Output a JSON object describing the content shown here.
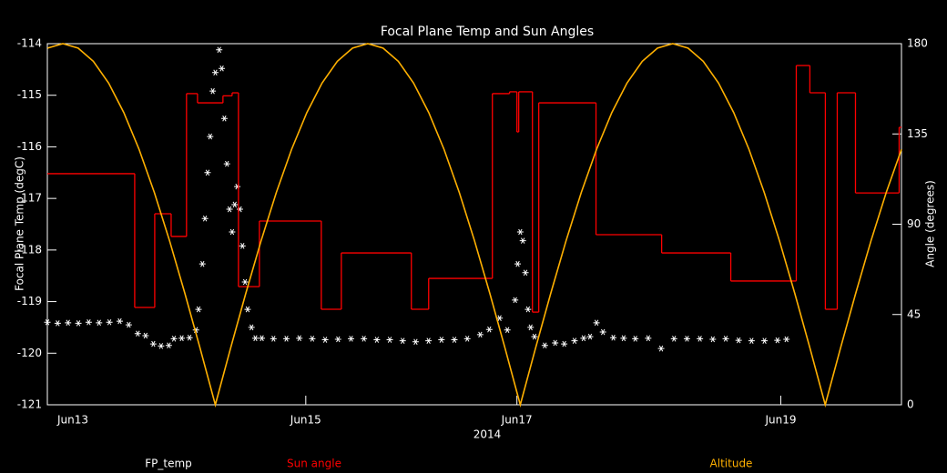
{
  "chart_data": {
    "type": "line",
    "title": "Focal Plane Temp and Sun Angles",
    "xlabel": "2014",
    "ylabel": "Focal Plane Temp (degC)",
    "y2label": "Angle (degrees)",
    "xlim": [
      0,
      6.61
    ],
    "xticks": [
      {
        "value": 0,
        "label": "Jun13"
      },
      {
        "value": 2.0,
        "label": "Jun15"
      },
      {
        "value": 3.634,
        "label": "Jun17"
      },
      {
        "value": 5.676,
        "label": "Jun19"
      }
    ],
    "ylim": [
      -121,
      -114
    ],
    "yticks": [
      -121,
      -120,
      -119,
      -118,
      -117,
      -116,
      -115,
      -114
    ],
    "y2lim": [
      0,
      180
    ],
    "y2ticks": [
      0,
      45,
      90,
      135,
      180
    ],
    "background": "#000000",
    "series": [
      {
        "name": "FP_temp",
        "color": "#ffffff",
        "style": "asterisk",
        "x": [
          0.0,
          0.08,
          0.16,
          0.24,
          0.32,
          0.4,
          0.48,
          0.56,
          0.63,
          0.7,
          0.76,
          0.82,
          0.88,
          0.94,
          0.98,
          1.04,
          1.1,
          1.15,
          1.17,
          1.2,
          1.22,
          1.24,
          1.26,
          1.28,
          1.3,
          1.33,
          1.35,
          1.37,
          1.39,
          1.41,
          1.43,
          1.45,
          1.47,
          1.49,
          1.51,
          1.53,
          1.55,
          1.58,
          1.61,
          1.66,
          1.75,
          1.85,
          1.95,
          2.05,
          2.15,
          2.25,
          2.35,
          2.45,
          2.55,
          2.65,
          2.75,
          2.85,
          2.95,
          3.05,
          3.15,
          3.25,
          3.35,
          3.42,
          3.5,
          3.56,
          3.62,
          3.64,
          3.66,
          3.68,
          3.7,
          3.72,
          3.74,
          3.77,
          3.85,
          3.93,
          4.0,
          4.08,
          4.15,
          4.2,
          4.25,
          4.3,
          4.38,
          4.46,
          4.55,
          4.65,
          4.75,
          4.85,
          4.95,
          5.05,
          5.15,
          5.25,
          5.35,
          5.45,
          5.55,
          5.65,
          5.72
        ],
        "values": [
          -119.4,
          -119.42,
          -119.41,
          -119.42,
          -119.4,
          -119.41,
          -119.4,
          -119.38,
          -119.45,
          -119.62,
          -119.66,
          -119.82,
          -119.86,
          -119.85,
          -119.72,
          -119.71,
          -119.7,
          -119.55,
          -119.15,
          -118.27,
          -117.39,
          -116.5,
          -115.8,
          -114.92,
          -114.56,
          -114.12,
          -114.48,
          -115.45,
          -116.33,
          -117.21,
          -117.65,
          -117.12,
          -116.77,
          -117.21,
          -117.92,
          -118.62,
          -119.15,
          -119.5,
          -119.71,
          -119.71,
          -119.72,
          -119.72,
          -119.71,
          -119.72,
          -119.74,
          -119.73,
          -119.72,
          -119.72,
          -119.74,
          -119.74,
          -119.76,
          -119.78,
          -119.76,
          -119.74,
          -119.74,
          -119.72,
          -119.64,
          -119.54,
          -119.32,
          -119.55,
          -118.97,
          -118.27,
          -117.65,
          -117.82,
          -118.44,
          -119.15,
          -119.5,
          -119.68,
          -119.85,
          -119.8,
          -119.82,
          -119.76,
          -119.71,
          -119.68,
          -119.41,
          -119.59,
          -119.7,
          -119.71,
          -119.72,
          -119.71,
          -119.91,
          -119.72,
          -119.72,
          -119.72,
          -119.73,
          -119.72,
          -119.75,
          -119.76,
          -119.76,
          -119.75,
          -119.73
        ]
      },
      {
        "name": "Sun angle",
        "color": "#ff0000",
        "style": "steps",
        "axis": "y2",
        "x": [
          0,
          0.676,
          0.831,
          0.958,
          1.077,
          1.162,
          1.359,
          1.43,
          1.479,
          1.641,
          2.12,
          2.275,
          2.817,
          2.951,
          3.444,
          3.577,
          3.634,
          3.648,
          3.754,
          3.803,
          4.246,
          4.754,
          5.289,
          5.796,
          5.901,
          6.021,
          6.113,
          6.254,
          6.592
        ],
        "values": [
          115.2,
          48.5,
          95.2,
          83.9,
          155.1,
          150.5,
          154.0,
          155.5,
          58.9,
          91.6,
          47.6,
          75.7,
          47.6,
          63.0,
          155.1,
          156.0,
          136.0,
          156.0,
          46.2,
          150.5,
          84.8,
          75.7,
          61.7,
          169.1,
          155.5,
          47.6,
          155.5,
          105.6,
          138.3
        ]
      },
      {
        "name": "Altitude",
        "color": "#ffb000",
        "style": "line",
        "axis": "y2",
        "x": [
          0.002,
          0.12,
          0.238,
          0.356,
          0.474,
          0.592,
          0.71,
          0.828,
          0.946,
          1.064,
          1.182,
          1.3,
          1.418,
          1.536,
          1.654,
          1.772,
          1.89,
          2.008,
          2.126,
          2.244,
          2.362,
          2.48,
          2.598,
          2.716,
          2.834,
          2.952,
          3.07,
          3.188,
          3.306,
          3.424,
          3.542,
          3.66,
          3.778,
          3.896,
          4.014,
          4.132,
          4.25,
          4.368,
          4.486,
          4.604,
          4.722,
          4.84,
          4.958,
          5.076,
          5.194,
          5.312,
          5.43,
          5.548,
          5.666,
          5.784,
          5.902,
          6.02,
          6.138,
          6.256,
          6.374,
          6.492,
          6.61
        ],
        "values": [
          177.8,
          180,
          177.8,
          171.2,
          160.4,
          145.6,
          127.3,
          105.8,
          81.7,
          55.6,
          28.2,
          0,
          28.2,
          55.6,
          81.7,
          105.8,
          127.3,
          145.6,
          160.4,
          171.2,
          177.8,
          180,
          177.8,
          171.2,
          160.4,
          145.6,
          127.3,
          105.8,
          81.7,
          55.6,
          28.2,
          0,
          28.2,
          55.6,
          81.7,
          105.8,
          127.3,
          145.6,
          160.4,
          171.2,
          177.8,
          180,
          177.8,
          171.2,
          160.4,
          145.6,
          127.3,
          105.8,
          81.7,
          55.6,
          28.2,
          0,
          28.2,
          55.6,
          81.7,
          105.8,
          127.3
        ]
      }
    ]
  }
}
